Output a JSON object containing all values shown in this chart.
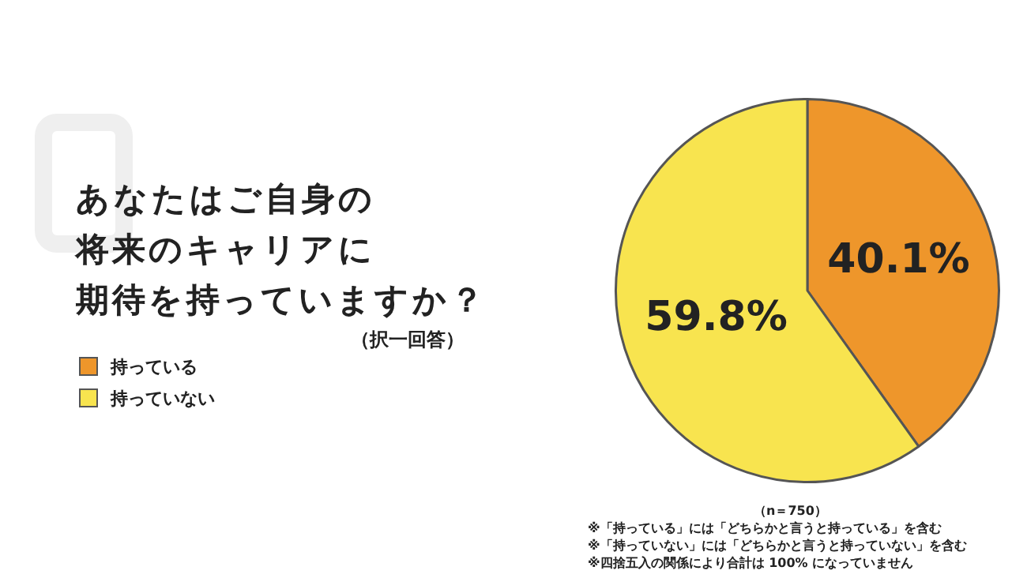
{
  "chart_data": {
    "type": "pie",
    "title": "あなたはご自身の将来のキャリアに期待を持っていますか？",
    "subtitle": "（択一回答）",
    "categories": [
      "持っている",
      "持っていない"
    ],
    "values": [
      40.1,
      59.8
    ],
    "colors": [
      "#ee962b",
      "#f8e44f"
    ],
    "value_labels": [
      "40.1%",
      "59.8%"
    ],
    "legend": "left",
    "annotations": [
      "（n＝750）",
      "※「持っている」には「どちらかと言うと持っている」を含む",
      "※「持っていない」には「どちらかと言うと持っていない」を含む",
      "※四捨五入の関係により合計は 100% になっていません"
    ]
  }
}
